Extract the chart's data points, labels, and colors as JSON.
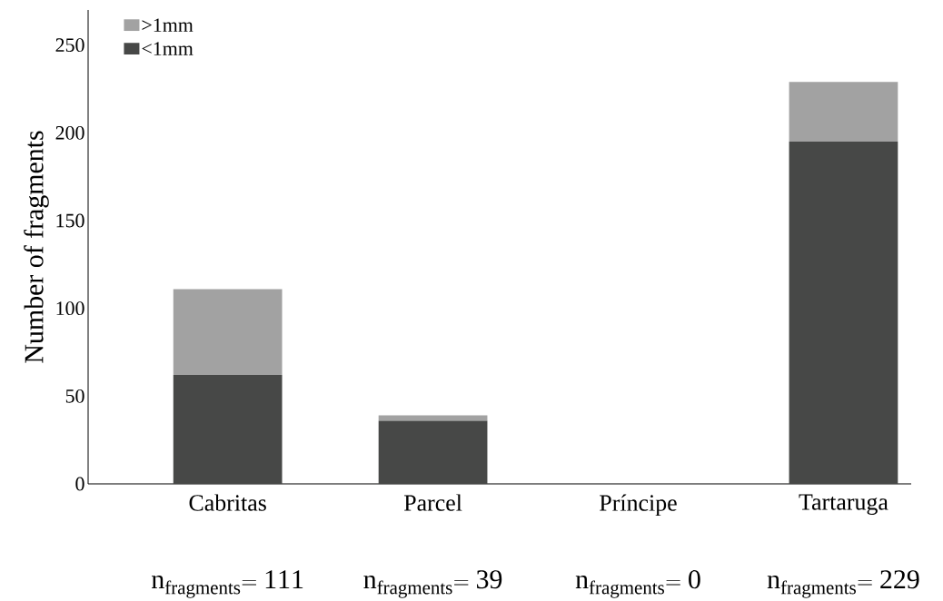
{
  "chart_data": {
    "type": "bar",
    "stacked": true,
    "ylabel": "Number of fragments",
    "categories": [
      "Cabritas",
      "Parcel",
      "Príncipe",
      "Tartaruga"
    ],
    "series": [
      {
        "name": "<1mm",
        "color": "#474847",
        "values": [
          62,
          36,
          0,
          195
        ]
      },
      {
        "name": ">1mm",
        "color": "#a2a2a2",
        "values": [
          49,
          3,
          0,
          34
        ]
      }
    ],
    "ylim": [
      0,
      270
    ],
    "yticks": [
      0,
      50,
      100,
      150,
      200,
      250
    ],
    "grid": false,
    "legend": "top left",
    "annotations": [
      "\\mathrm{n}_{\\mathrm{fragments}}\\mathrm{=111}",
      "\\mathrm{n}_{\\mathrm{fragments}}\\mathrm{=39}",
      "\\mathrm{n}_{\\mathrm{fragments}}\\mathrm{=0}",
      "\\mathrm{n}_{\\mathrm{fragments}}\\mathrm{=229}"
    ]
  }
}
